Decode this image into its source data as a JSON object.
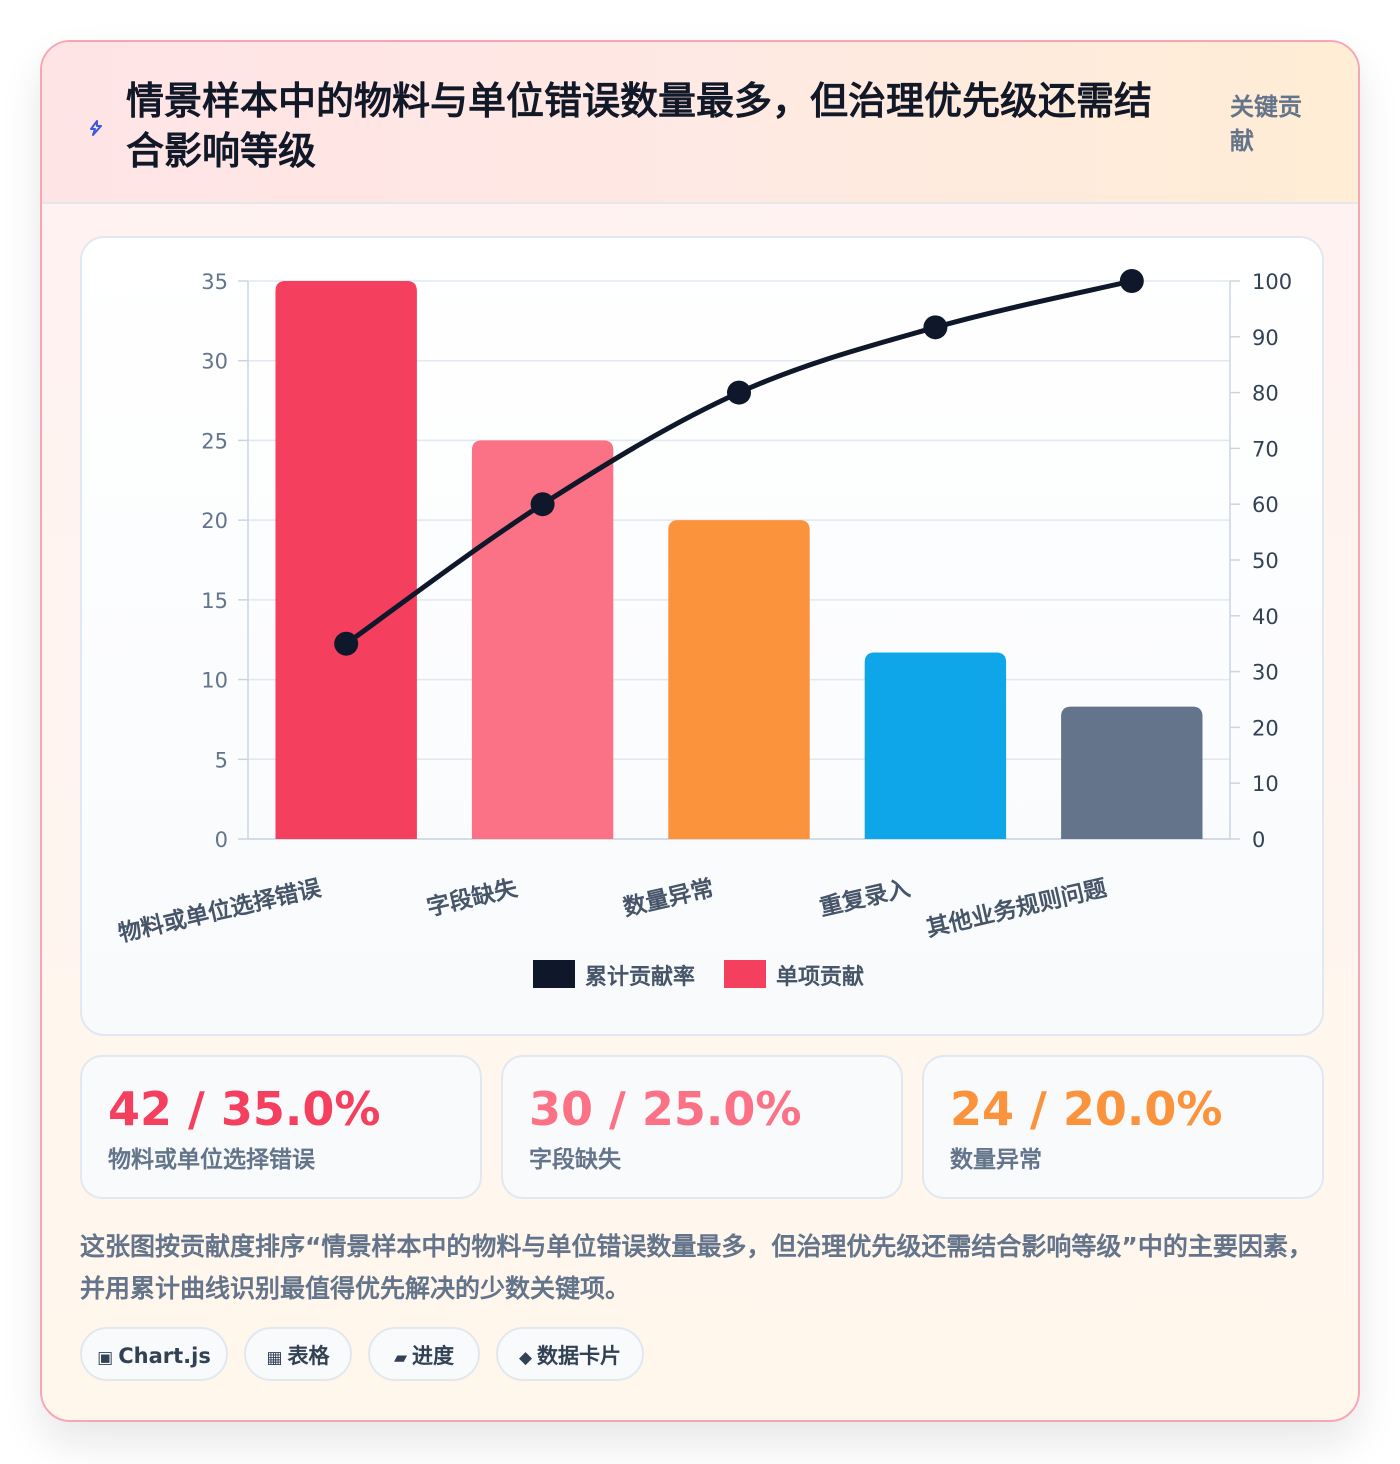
{
  "header": {
    "title": "情景样本中的物料与单位错误数量最多，但治理优先级还需结合影响等级",
    "badge": "关键贡献",
    "icon": "lightning-icon"
  },
  "chart_data": {
    "type": "bar",
    "categories": [
      "物料或单位选择错误",
      "字段缺失",
      "数量异常",
      "重复录入",
      "其他业务规则问题"
    ],
    "series": [
      {
        "name": "单项贡献",
        "type": "bar",
        "axis": "left",
        "values": [
          35,
          25,
          20,
          11.7,
          8.3
        ],
        "colors": [
          "#f43f5e",
          "#fb7185",
          "#fb923c",
          "#0ea5e9",
          "#64748b"
        ]
      },
      {
        "name": "累计贡献率",
        "type": "line",
        "axis": "right",
        "values": [
          35,
          60,
          80,
          91.7,
          100
        ],
        "color": "#0f172a"
      }
    ],
    "left_axis": {
      "min": 0,
      "max": 35,
      "ticks": [
        "0",
        "5",
        "10",
        "15",
        "20",
        "25",
        "30",
        "35"
      ]
    },
    "right_axis": {
      "min": 0,
      "max": 100,
      "ticks": [
        "0",
        "10",
        "20",
        "30",
        "40",
        "50",
        "60",
        "70",
        "80",
        "90",
        "100"
      ]
    },
    "legend": [
      {
        "label": "累计贡献率",
        "color": "#0f172a"
      },
      {
        "label": "单项贡献",
        "color": "#f43f5e"
      }
    ],
    "legend_position": "bottom",
    "grid": true
  },
  "stats": [
    {
      "value": "42 / 35.0%",
      "label": "物料或单位选择错误",
      "color": "#f43f5e"
    },
    {
      "value": "30 / 25.0%",
      "label": "字段缺失",
      "color": "#fb7185"
    },
    {
      "value": "24 / 20.0%",
      "label": "数量异常",
      "color": "#fb923c"
    }
  ],
  "description": "这张图按贡献度排序“情景样本中的物料与单位错误数量最多，但治理优先级还需结合影响等级”中的主要因素，并用累计曲线识别最值得优先解决的少数关键项。",
  "tags": [
    {
      "icon": "▣",
      "label": "Chart.js",
      "icon_name": "chart-icon"
    },
    {
      "icon": "▦",
      "label": "表格",
      "icon_name": "table-icon"
    },
    {
      "icon": "▰",
      "label": "进度",
      "icon_name": "progress-icon"
    },
    {
      "icon": "◆",
      "label": "数据卡片",
      "icon_name": "card-icon"
    }
  ]
}
